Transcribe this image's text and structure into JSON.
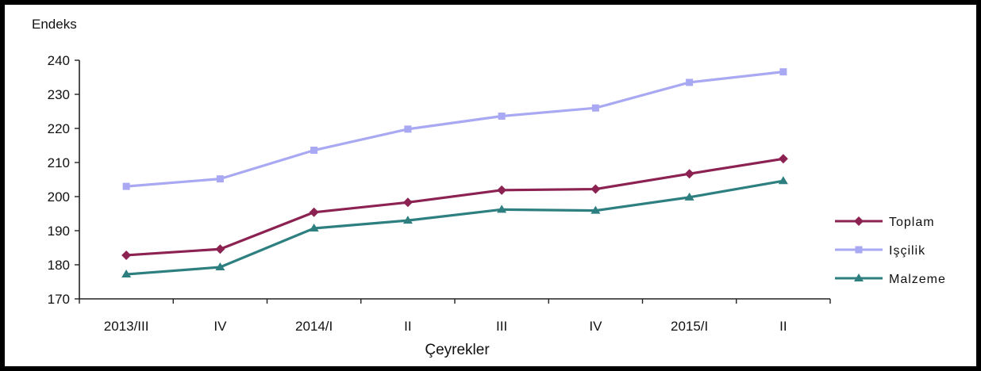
{
  "chart_data": {
    "type": "line",
    "ylabel": "Endeks",
    "xlabel": "Çeyrekler",
    "categories": [
      "2013/III",
      "IV",
      "2014/I",
      "II",
      "III",
      "IV",
      "2015/I",
      "II"
    ],
    "ylim": [
      170,
      240
    ],
    "yticks": [
      "240",
      "230",
      "220",
      "210",
      "200",
      "190",
      "180",
      "170"
    ],
    "grid": false,
    "legend_position": "right",
    "series": [
      {
        "name": "Toplam",
        "color": "#8B2252",
        "marker": "diamond",
        "values": [
          182.8,
          184.6,
          195.4,
          198.3,
          201.9,
          202.2,
          206.7,
          211.1
        ]
      },
      {
        "name": "Işçilik",
        "color": "#A9A8F2",
        "marker": "square",
        "values": [
          203.0,
          205.2,
          213.6,
          219.8,
          223.6,
          226.0,
          233.5,
          236.6
        ]
      },
      {
        "name": "Malzeme",
        "color": "#2E7F80",
        "marker": "triangle",
        "values": [
          177.2,
          179.3,
          190.7,
          193.0,
          196.2,
          195.9,
          199.8,
          204.6
        ]
      }
    ]
  }
}
